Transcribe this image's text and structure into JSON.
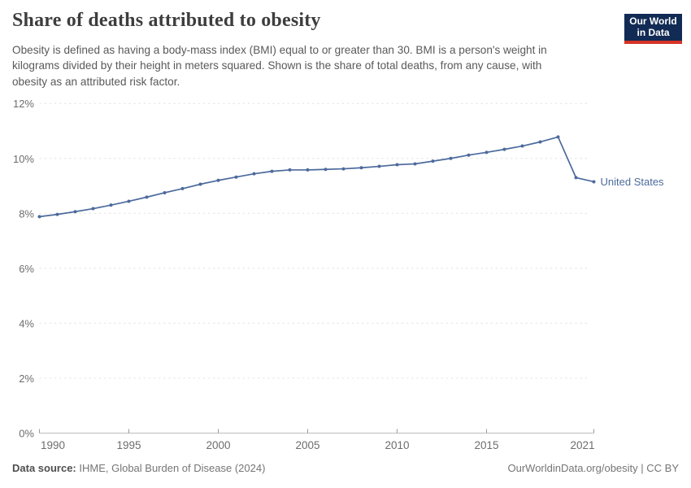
{
  "header": {
    "title": "Share of deaths attributed to obesity",
    "subtitle_lines": [
      "Obesity is defined as having a body-mass index (BMI) equal to or greater than 30. BMI is a person's weight in",
      "kilograms divided by their height in meters squared. Shown is the share of total deaths, from any cause, with",
      "obesity as an attributed risk factor."
    ],
    "logo": {
      "line1": "Our World",
      "line2": "in Data"
    }
  },
  "footer": {
    "source_label": "Data source:",
    "source_value": " IHME, Global Burden of Disease (2024)",
    "link": "OurWorldinData.org/obesity | CC BY"
  },
  "colors": {
    "series": "#4c6a9c",
    "grid": "#e4e4e4",
    "axis": "#bdbdbd",
    "tick_mark": "#9b9b9b",
    "tick_label": "#6d6d6d",
    "logo_bg": "#122b54",
    "logo_red": "#d63327"
  },
  "chart_data": {
    "type": "line",
    "title": "Share of deaths attributed to obesity",
    "xlabel": "",
    "ylabel": "",
    "xlim": [
      1990,
      2021
    ],
    "ylim": [
      0,
      12
    ],
    "grid": true,
    "legend_position": "end-of-line-label",
    "x_ticks": [
      1990,
      1995,
      2000,
      2005,
      2010,
      2015,
      2021
    ],
    "y_ticks": [
      0,
      2,
      4,
      6,
      8,
      10,
      12
    ],
    "y_tick_suffix": "%",
    "series": [
      {
        "name": "United States",
        "color": "#4c6a9c",
        "x": [
          1990,
          1991,
          1992,
          1993,
          1994,
          1995,
          1996,
          1997,
          1998,
          1999,
          2000,
          2001,
          2002,
          2003,
          2004,
          2005,
          2006,
          2007,
          2008,
          2009,
          2010,
          2011,
          2012,
          2013,
          2014,
          2015,
          2016,
          2017,
          2018,
          2019,
          2020,
          2021
        ],
        "values": [
          7.88,
          7.96,
          8.06,
          8.17,
          8.3,
          8.44,
          8.59,
          8.75,
          8.9,
          9.06,
          9.2,
          9.32,
          9.44,
          9.53,
          9.58,
          9.58,
          9.6,
          9.62,
          9.66,
          9.71,
          9.77,
          9.8,
          9.9,
          10.0,
          10.12,
          10.22,
          10.33,
          10.45,
          10.6,
          10.78,
          9.3,
          9.15
        ]
      }
    ]
  }
}
